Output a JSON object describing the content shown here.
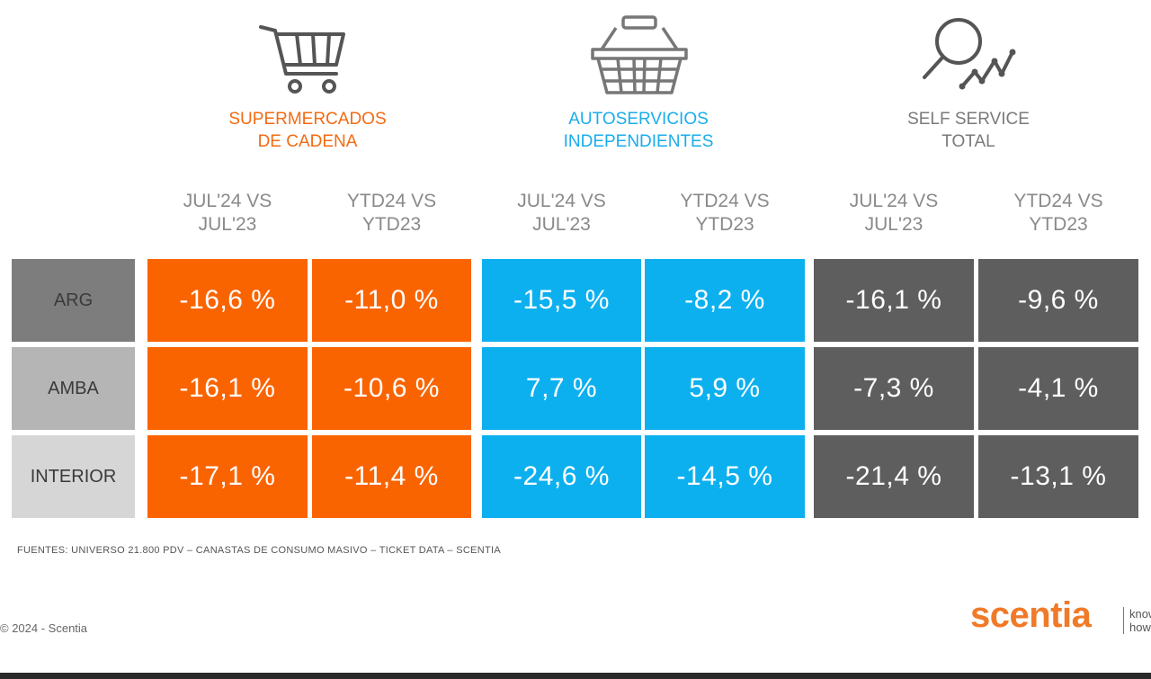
{
  "groups": [
    {
      "line1": "SUPERMERCADOS",
      "line2": "DE CADENA",
      "color": "#f26b12",
      "icon": "shopping-cart-icon"
    },
    {
      "line1": "AUTOSERVICIOS",
      "line2": "INDEPENDIENTES",
      "color": "#1aadea",
      "icon": "shopping-basket-icon"
    },
    {
      "line1": "SELF SERVICE",
      "line2": "TOTAL",
      "color": "#7a7a7a",
      "icon": "magnifier-trend-icon"
    }
  ],
  "chart_data": {
    "type": "table",
    "columns": [
      {
        "line1": "JUL'24 VS",
        "line2": "JUL'23"
      },
      {
        "line1": "YTD24 VS",
        "line2": "YTD23"
      },
      {
        "line1": "JUL'24 VS",
        "line2": "JUL'23"
      },
      {
        "line1": "YTD24 VS",
        "line2": "YTD23"
      },
      {
        "line1": "JUL'24 VS",
        "line2": "JUL'23"
      },
      {
        "line1": "YTD24 VS",
        "line2": "YTD23"
      }
    ],
    "rows": [
      {
        "label": "ARG",
        "values": [
          "-16,6 %",
          "-11,0 %",
          "-15,5 %",
          "-8,2 %",
          "-16,1 %",
          "-9,6 %"
        ]
      },
      {
        "label": "AMBA",
        "values": [
          "-16,1 %",
          "-10,6 %",
          "7,7 %",
          "5,9 %",
          "-7,3 %",
          "-4,1 %"
        ]
      },
      {
        "label": "INTERIOR",
        "values": [
          "-17,1 %",
          "-11,4 %",
          "-24,6 %",
          "-14,5 %",
          "-21,4 %",
          "-13,1 %"
        ]
      }
    ],
    "cell_colors": [
      "#fa6400",
      "#fa6400",
      "#0db0ef",
      "#0db0ef",
      "#5e5e5e",
      "#5e5e5e"
    ],
    "row_label_colors": [
      "#7d7d7d",
      "#b5b5b5",
      "#d6d6d6"
    ]
  },
  "footnote": "FUENTES: UNIVERSO 21.800 PDV – CANASTAS DE CONSUMO MASIVO – TICKET DATA  – SCENTIA",
  "copyright": "© 2024 - Scentia",
  "logo": {
    "name": "scentia",
    "tag_line1": "know",
    "tag_line2": "how",
    "color": "#f07a28"
  }
}
